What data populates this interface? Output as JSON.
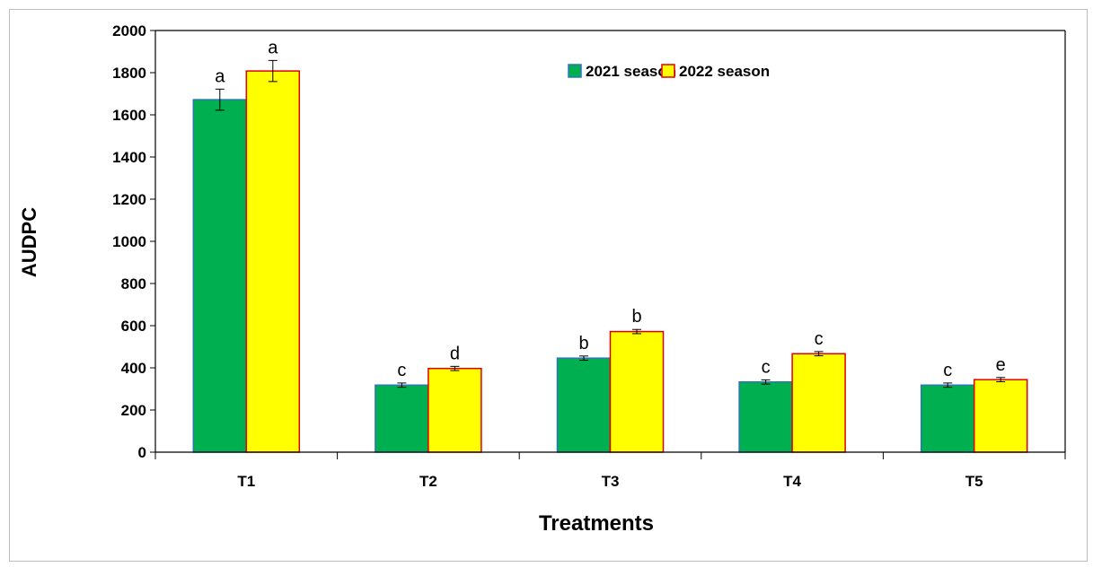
{
  "chart_data": {
    "type": "bar",
    "title": "",
    "xlabel": "Treatments",
    "ylabel": "AUDPC",
    "ylim": [
      0,
      2000
    ],
    "yticks": [
      0,
      200,
      400,
      600,
      800,
      1000,
      1200,
      1400,
      1600,
      1800,
      2000
    ],
    "categories": [
      "T1",
      "T2",
      "T3",
      "T4",
      "T5"
    ],
    "grid": false,
    "legend_position": "top-center",
    "series": [
      {
        "name": "2021 season",
        "fill": "#00b050",
        "stroke": "#2e75b6",
        "values": [
          1672,
          318,
          446,
          333,
          318
        ],
        "errors": [
          50,
          10,
          10,
          10,
          10
        ],
        "labels": [
          "a",
          "c",
          "b",
          "c",
          "c"
        ]
      },
      {
        "name": "2022 season",
        "fill": "#ffff00",
        "stroke": "#e00000",
        "values": [
          1808,
          397,
          572,
          467,
          344
        ],
        "errors": [
          50,
          10,
          10,
          10,
          10
        ],
        "labels": [
          "a",
          "d",
          "b",
          "c",
          "e"
        ]
      }
    ]
  }
}
